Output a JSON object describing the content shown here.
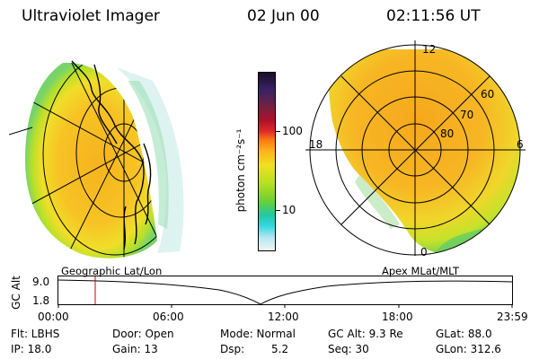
{
  "header": {
    "instrument": "Ultraviolet Imager",
    "date": "02 Jun 00",
    "time": "02:11:56 UT"
  },
  "left_panel": {
    "label": "Geographic Lat/Lon"
  },
  "right_panel": {
    "label": "Apex MLat/MLT",
    "lat_labels": [
      "60",
      "70",
      "80"
    ],
    "mlt_labels": [
      "12",
      "18",
      "6",
      "0"
    ]
  },
  "colorbar": {
    "unit_label": "photon cm⁻²s⁻¹",
    "ticks": [
      "100",
      "10"
    ],
    "colors_top_to_bottom": [
      "#1a0c2a",
      "#3a2366",
      "#7b1f3d",
      "#b0102a",
      "#e02a2a",
      "#ff7a10",
      "#ffb21a",
      "#f0e020",
      "#b8e020",
      "#6fd030",
      "#20c8a0",
      "#30d8e0",
      "#b8e8f0",
      "#f0f4f4"
    ]
  },
  "altitude_plot": {
    "ylabel": "GC Alt",
    "y_ticks": [
      "9.0",
      "1.8"
    ],
    "x_ticks": [
      "00:00",
      "06:00",
      "12:00",
      "18:00",
      "23:59"
    ],
    "marker_color": "#cc0000"
  },
  "info": {
    "flt": "Flt: LBHS",
    "ip": "IP: 18.0",
    "door": "Door: Open",
    "gain": "Gain: 13",
    "mode": "Mode: Normal",
    "dsp_label": "Dsp:",
    "dsp_value": "5.2",
    "gc_alt": "GC Alt: 9.3 Re",
    "seq": "Seq: 30",
    "glat": "GLat: 88.0",
    "glon": "GLon: 312.6"
  }
}
